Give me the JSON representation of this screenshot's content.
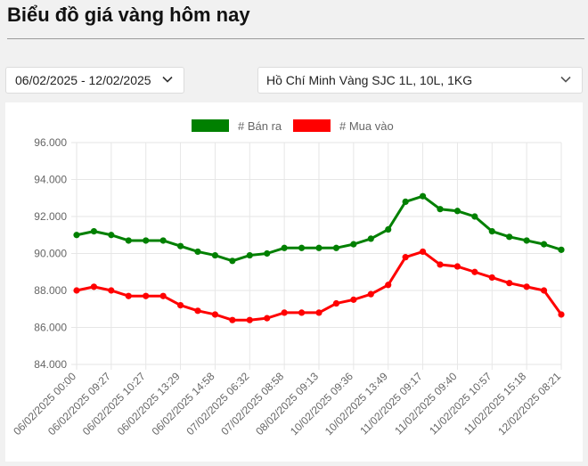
{
  "page": {
    "title": "Biểu đồ giá vàng hôm nay"
  },
  "filters": {
    "date_range": "06/02/2025 - 12/02/2025",
    "product": "Hồ Chí Minh Vàng SJC 1L, 10L, 1KG"
  },
  "icons": {
    "dropdown": "chevron-down-icon"
  },
  "colors": {
    "sell": "#008000",
    "buy": "#ff0000",
    "grid": "#e6e6e6",
    "tick": "#666666"
  },
  "chart_data": {
    "type": "line",
    "title": "",
    "xlabel": "",
    "ylabel": "",
    "ylim": [
      84000,
      96000
    ],
    "yticks": [
      84000,
      86000,
      88000,
      90000,
      92000,
      94000,
      96000
    ],
    "ytick_labels": [
      "84.000",
      "86.000",
      "88.000",
      "90.000",
      "92.000",
      "94.000",
      "96.000"
    ],
    "grid": true,
    "legend_position": "top-center",
    "x_points": 29,
    "xtick_labels": [
      {
        "index": 0,
        "label": "06/02/2025 00:00"
      },
      {
        "index": 2,
        "label": "06/02/2025 09:27"
      },
      {
        "index": 4,
        "label": "06/02/2025 10:27"
      },
      {
        "index": 6,
        "label": "06/02/2025 13:29"
      },
      {
        "index": 8,
        "label": "06/02/2025 14:58"
      },
      {
        "index": 10,
        "label": "07/02/2025 06:32"
      },
      {
        "index": 12,
        "label": "07/02/2025 08:58"
      },
      {
        "index": 14,
        "label": "08/02/2025 09:13"
      },
      {
        "index": 16,
        "label": "10/02/2025 09:36"
      },
      {
        "index": 18,
        "label": "10/02/2025 13:49"
      },
      {
        "index": 20,
        "label": "11/02/2025 09:17"
      },
      {
        "index": 22,
        "label": "11/02/2025 09:40"
      },
      {
        "index": 24,
        "label": "11/02/2025 10:57"
      },
      {
        "index": 26,
        "label": "11/02/2025 15:18"
      },
      {
        "index": 28,
        "label": "12/02/2025 08:21"
      }
    ],
    "series": [
      {
        "name": "# Bán ra",
        "color": "#008000",
        "values": [
          91000,
          91200,
          91000,
          90700,
          90700,
          90700,
          90400,
          90100,
          89900,
          89600,
          89900,
          90000,
          90300,
          90300,
          90300,
          90300,
          90500,
          90800,
          91300,
          92800,
          93100,
          92400,
          92300,
          92000,
          91200,
          90900,
          90700,
          90500,
          90200
        ]
      },
      {
        "name": "# Mua vào",
        "color": "#ff0000",
        "values": [
          88000,
          88200,
          88000,
          87700,
          87700,
          87700,
          87200,
          86900,
          86700,
          86400,
          86400,
          86500,
          86800,
          86800,
          86800,
          87300,
          87500,
          87800,
          88300,
          89800,
          90100,
          89400,
          89300,
          89000,
          88700,
          88400,
          88200,
          88000,
          86700
        ]
      }
    ]
  }
}
